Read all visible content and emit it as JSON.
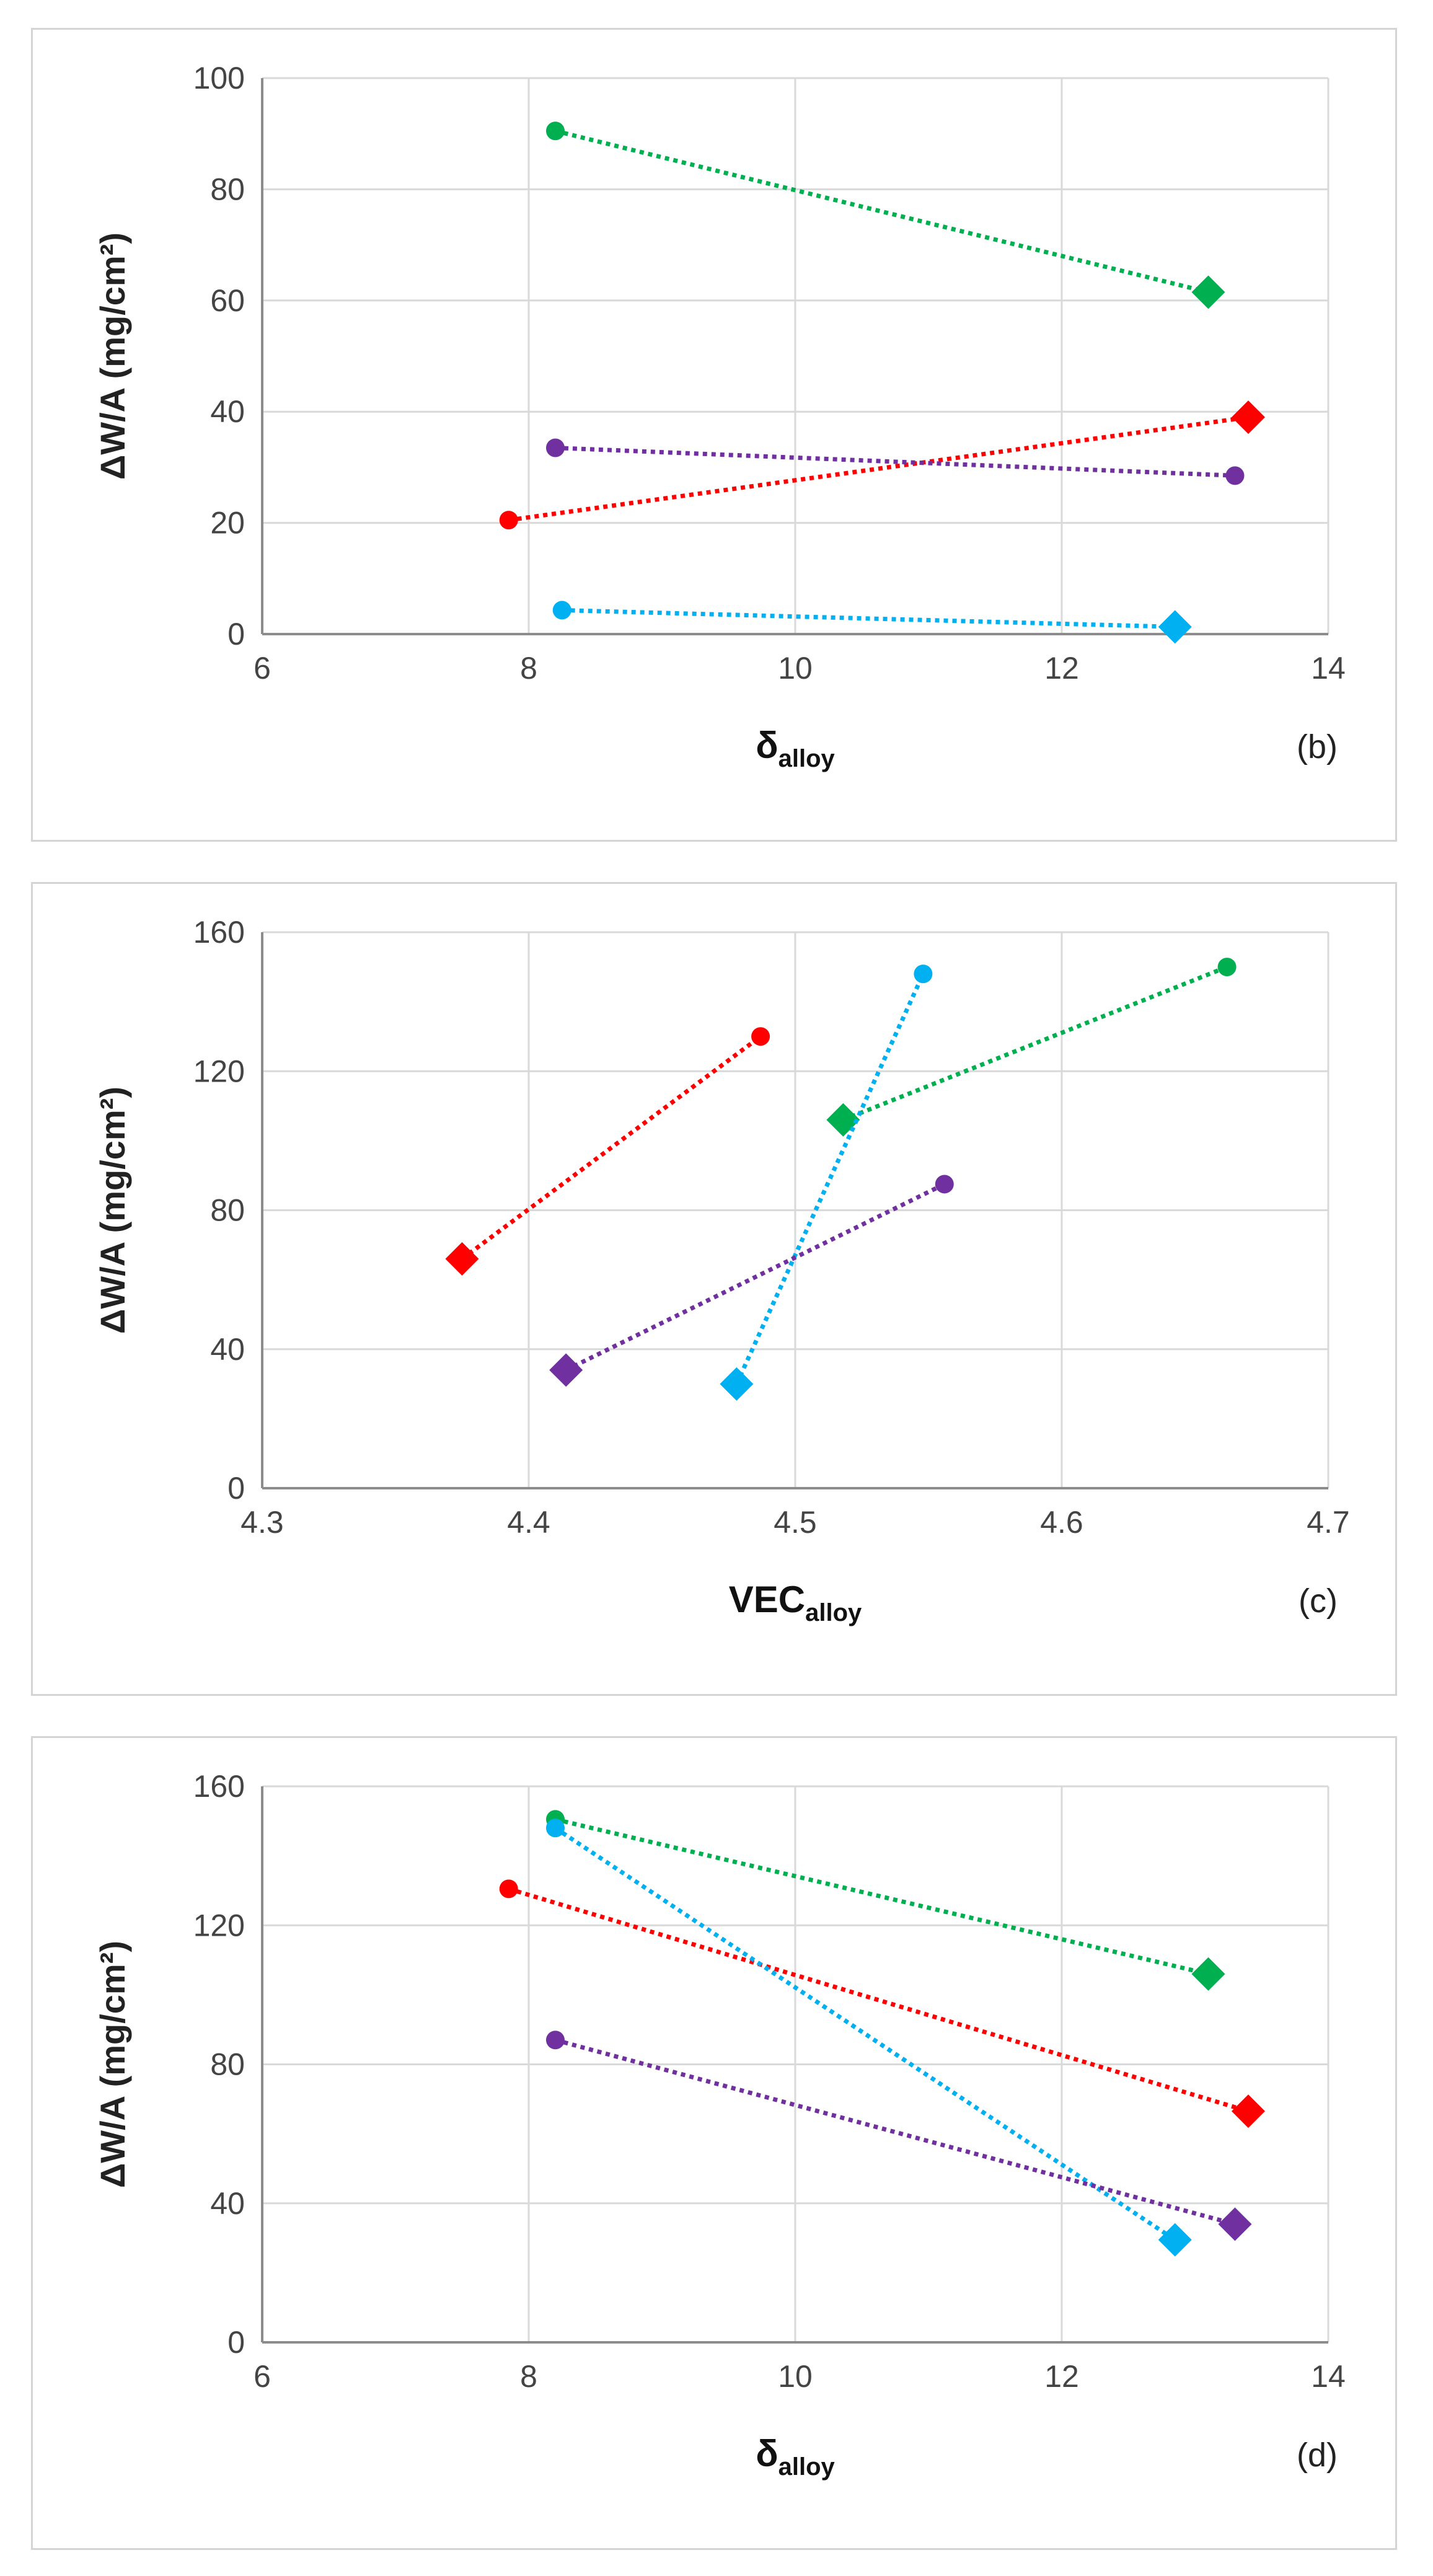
{
  "chart_data": [
    {
      "type": "scatter",
      "panel_label": "(b)",
      "xlabel_main": "δ",
      "xlabel_sub": "alloy",
      "ylabel": "ΔW/A (mg/cm²)",
      "xlim": [
        6,
        14
      ],
      "ylim": [
        0,
        100
      ],
      "xticks": [
        "6",
        "8",
        "10",
        "12",
        "14"
      ],
      "yticks": [
        "0",
        "20",
        "40",
        "60",
        "80",
        "100"
      ],
      "grid": true,
      "series": [
        {
          "color": "#00b050",
          "points": [
            {
              "x": 8.2,
              "y": 90.5,
              "marker": "circle"
            },
            {
              "x": 13.1,
              "y": 61.5,
              "marker": "diamond"
            }
          ]
        },
        {
          "color": "#ff0000",
          "points": [
            {
              "x": 7.85,
              "y": 20.5,
              "marker": "circle"
            },
            {
              "x": 13.4,
              "y": 39.0,
              "marker": "diamond"
            }
          ]
        },
        {
          "color": "#7030a0",
          "points": [
            {
              "x": 8.2,
              "y": 33.5,
              "marker": "circle"
            },
            {
              "x": 13.3,
              "y": 28.5,
              "marker": "circle"
            }
          ]
        },
        {
          "color": "#00b0f0",
          "points": [
            {
              "x": 8.25,
              "y": 4.3,
              "marker": "circle"
            },
            {
              "x": 12.85,
              "y": 1.3,
              "marker": "diamond"
            }
          ]
        }
      ]
    },
    {
      "type": "scatter",
      "panel_label": "(c)",
      "xlabel_main": "VEC",
      "xlabel_sub": "alloy",
      "ylabel": "ΔW/A (mg/cm²)",
      "xlim": [
        4.3,
        4.7
      ],
      "ylim": [
        0,
        160
      ],
      "xticks": [
        "4.3",
        "4.4",
        "4.5",
        "4.6",
        "4.7"
      ],
      "yticks": [
        "0",
        "40",
        "80",
        "120",
        "160"
      ],
      "grid": true,
      "series": [
        {
          "color": "#ff0000",
          "points": [
            {
              "x": 4.375,
              "y": 66,
              "marker": "diamond"
            },
            {
              "x": 4.487,
              "y": 130,
              "marker": "circle"
            }
          ]
        },
        {
          "color": "#00b050",
          "points": [
            {
              "x": 4.518,
              "y": 106,
              "marker": "diamond"
            },
            {
              "x": 4.662,
              "y": 150,
              "marker": "circle"
            }
          ]
        },
        {
          "color": "#00b0f0",
          "points": [
            {
              "x": 4.478,
              "y": 30,
              "marker": "diamond"
            },
            {
              "x": 4.548,
              "y": 148,
              "marker": "circle"
            }
          ]
        },
        {
          "color": "#7030a0",
          "points": [
            {
              "x": 4.414,
              "y": 34,
              "marker": "diamond"
            },
            {
              "x": 4.556,
              "y": 87.5,
              "marker": "circle"
            }
          ]
        }
      ]
    },
    {
      "type": "scatter",
      "panel_label": "(d)",
      "xlabel_main": "δ",
      "xlabel_sub": "alloy",
      "ylabel": "ΔW/A (mg/cm²)",
      "xlim": [
        6,
        14
      ],
      "ylim": [
        0,
        160
      ],
      "xticks": [
        "6",
        "8",
        "10",
        "12",
        "14"
      ],
      "yticks": [
        "0",
        "40",
        "80",
        "120",
        "160"
      ],
      "grid": true,
      "series": [
        {
          "color": "#00b050",
          "points": [
            {
              "x": 8.2,
              "y": 150.5,
              "marker": "circle"
            },
            {
              "x": 13.1,
              "y": 106,
              "marker": "diamond"
            }
          ]
        },
        {
          "color": "#ff0000",
          "points": [
            {
              "x": 7.85,
              "y": 130.5,
              "marker": "circle"
            },
            {
              "x": 13.4,
              "y": 66.5,
              "marker": "diamond"
            }
          ]
        },
        {
          "color": "#00b0f0",
          "points": [
            {
              "x": 8.2,
              "y": 148,
              "marker": "circle"
            },
            {
              "x": 12.85,
              "y": 29.5,
              "marker": "diamond"
            }
          ]
        },
        {
          "color": "#7030a0",
          "points": [
            {
              "x": 8.2,
              "y": 87,
              "marker": "circle"
            },
            {
              "x": 13.3,
              "y": 34,
              "marker": "diamond"
            }
          ]
        }
      ]
    }
  ]
}
